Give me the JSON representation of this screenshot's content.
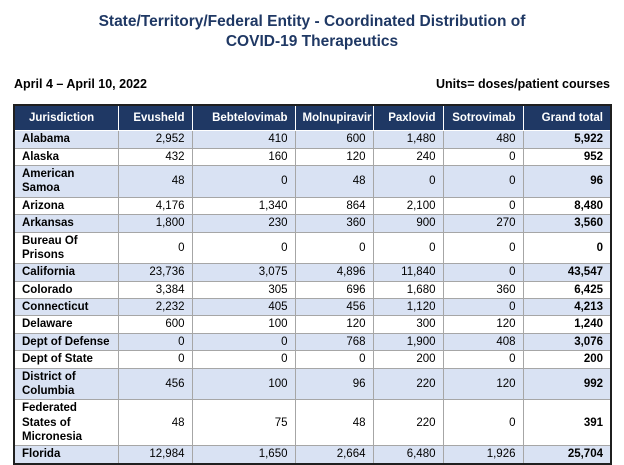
{
  "title": {
    "line1": "State/Territory/Federal Entity - Coordinated Distribution of",
    "line2": "COVID-19 Therapeutics"
  },
  "meta": {
    "date_range": "April 4 – April 10, 2022",
    "units": "Units= doses/patient courses"
  },
  "table": {
    "columns": [
      "Jurisdiction",
      "Evusheld",
      "Bebtelovimab",
      "Molnupiravir",
      "Paxlovid",
      "Sotrovimab",
      "Grand total"
    ],
    "rows": [
      {
        "jurisdiction": "Alabama",
        "values": [
          "2,952",
          "410",
          "600",
          "1,480",
          "480"
        ],
        "grand_total": "5,922"
      },
      {
        "jurisdiction": "Alaska",
        "values": [
          "432",
          "160",
          "120",
          "240",
          "0"
        ],
        "grand_total": "952"
      },
      {
        "jurisdiction": "American Samoa",
        "values": [
          "48",
          "0",
          "48",
          "0",
          "0"
        ],
        "grand_total": "96"
      },
      {
        "jurisdiction": "Arizona",
        "values": [
          "4,176",
          "1,340",
          "864",
          "2,100",
          "0"
        ],
        "grand_total": "8,480"
      },
      {
        "jurisdiction": "Arkansas",
        "values": [
          "1,800",
          "230",
          "360",
          "900",
          "270"
        ],
        "grand_total": "3,560"
      },
      {
        "jurisdiction": "Bureau Of Prisons",
        "values": [
          "0",
          "0",
          "0",
          "0",
          "0"
        ],
        "grand_total": "0"
      },
      {
        "jurisdiction": "California",
        "values": [
          "23,736",
          "3,075",
          "4,896",
          "11,840",
          "0"
        ],
        "grand_total": "43,547"
      },
      {
        "jurisdiction": "Colorado",
        "values": [
          "3,384",
          "305",
          "696",
          "1,680",
          "360"
        ],
        "grand_total": "6,425"
      },
      {
        "jurisdiction": "Connecticut",
        "values": [
          "2,232",
          "405",
          "456",
          "1,120",
          "0"
        ],
        "grand_total": "4,213"
      },
      {
        "jurisdiction": "Delaware",
        "values": [
          "600",
          "100",
          "120",
          "300",
          "120"
        ],
        "grand_total": "1,240"
      },
      {
        "jurisdiction": "Dept of Defense",
        "values": [
          "0",
          "0",
          "768",
          "1,900",
          "408"
        ],
        "grand_total": "3,076"
      },
      {
        "jurisdiction": "Dept of State",
        "values": [
          "0",
          "0",
          "0",
          "200",
          "0"
        ],
        "grand_total": "200"
      },
      {
        "jurisdiction": "District of Columbia",
        "values": [
          "456",
          "100",
          "96",
          "220",
          "120"
        ],
        "grand_total": "992"
      },
      {
        "jurisdiction": "Federated States of Micronesia",
        "values": [
          "48",
          "75",
          "48",
          "220",
          "0"
        ],
        "grand_total": "391"
      },
      {
        "jurisdiction": "Florida",
        "values": [
          "12,984",
          "1,650",
          "2,664",
          "6,480",
          "1,926"
        ],
        "grand_total": "25,704"
      }
    ]
  },
  "colors": {
    "header_bg": "#1F3864",
    "header_text": "#FFFFFF",
    "shaded_row_bg": "#D9E2F3",
    "title_text": "#1F3864",
    "grid_border": "#A6A6A6",
    "outer_border": "#1F1F1F"
  }
}
